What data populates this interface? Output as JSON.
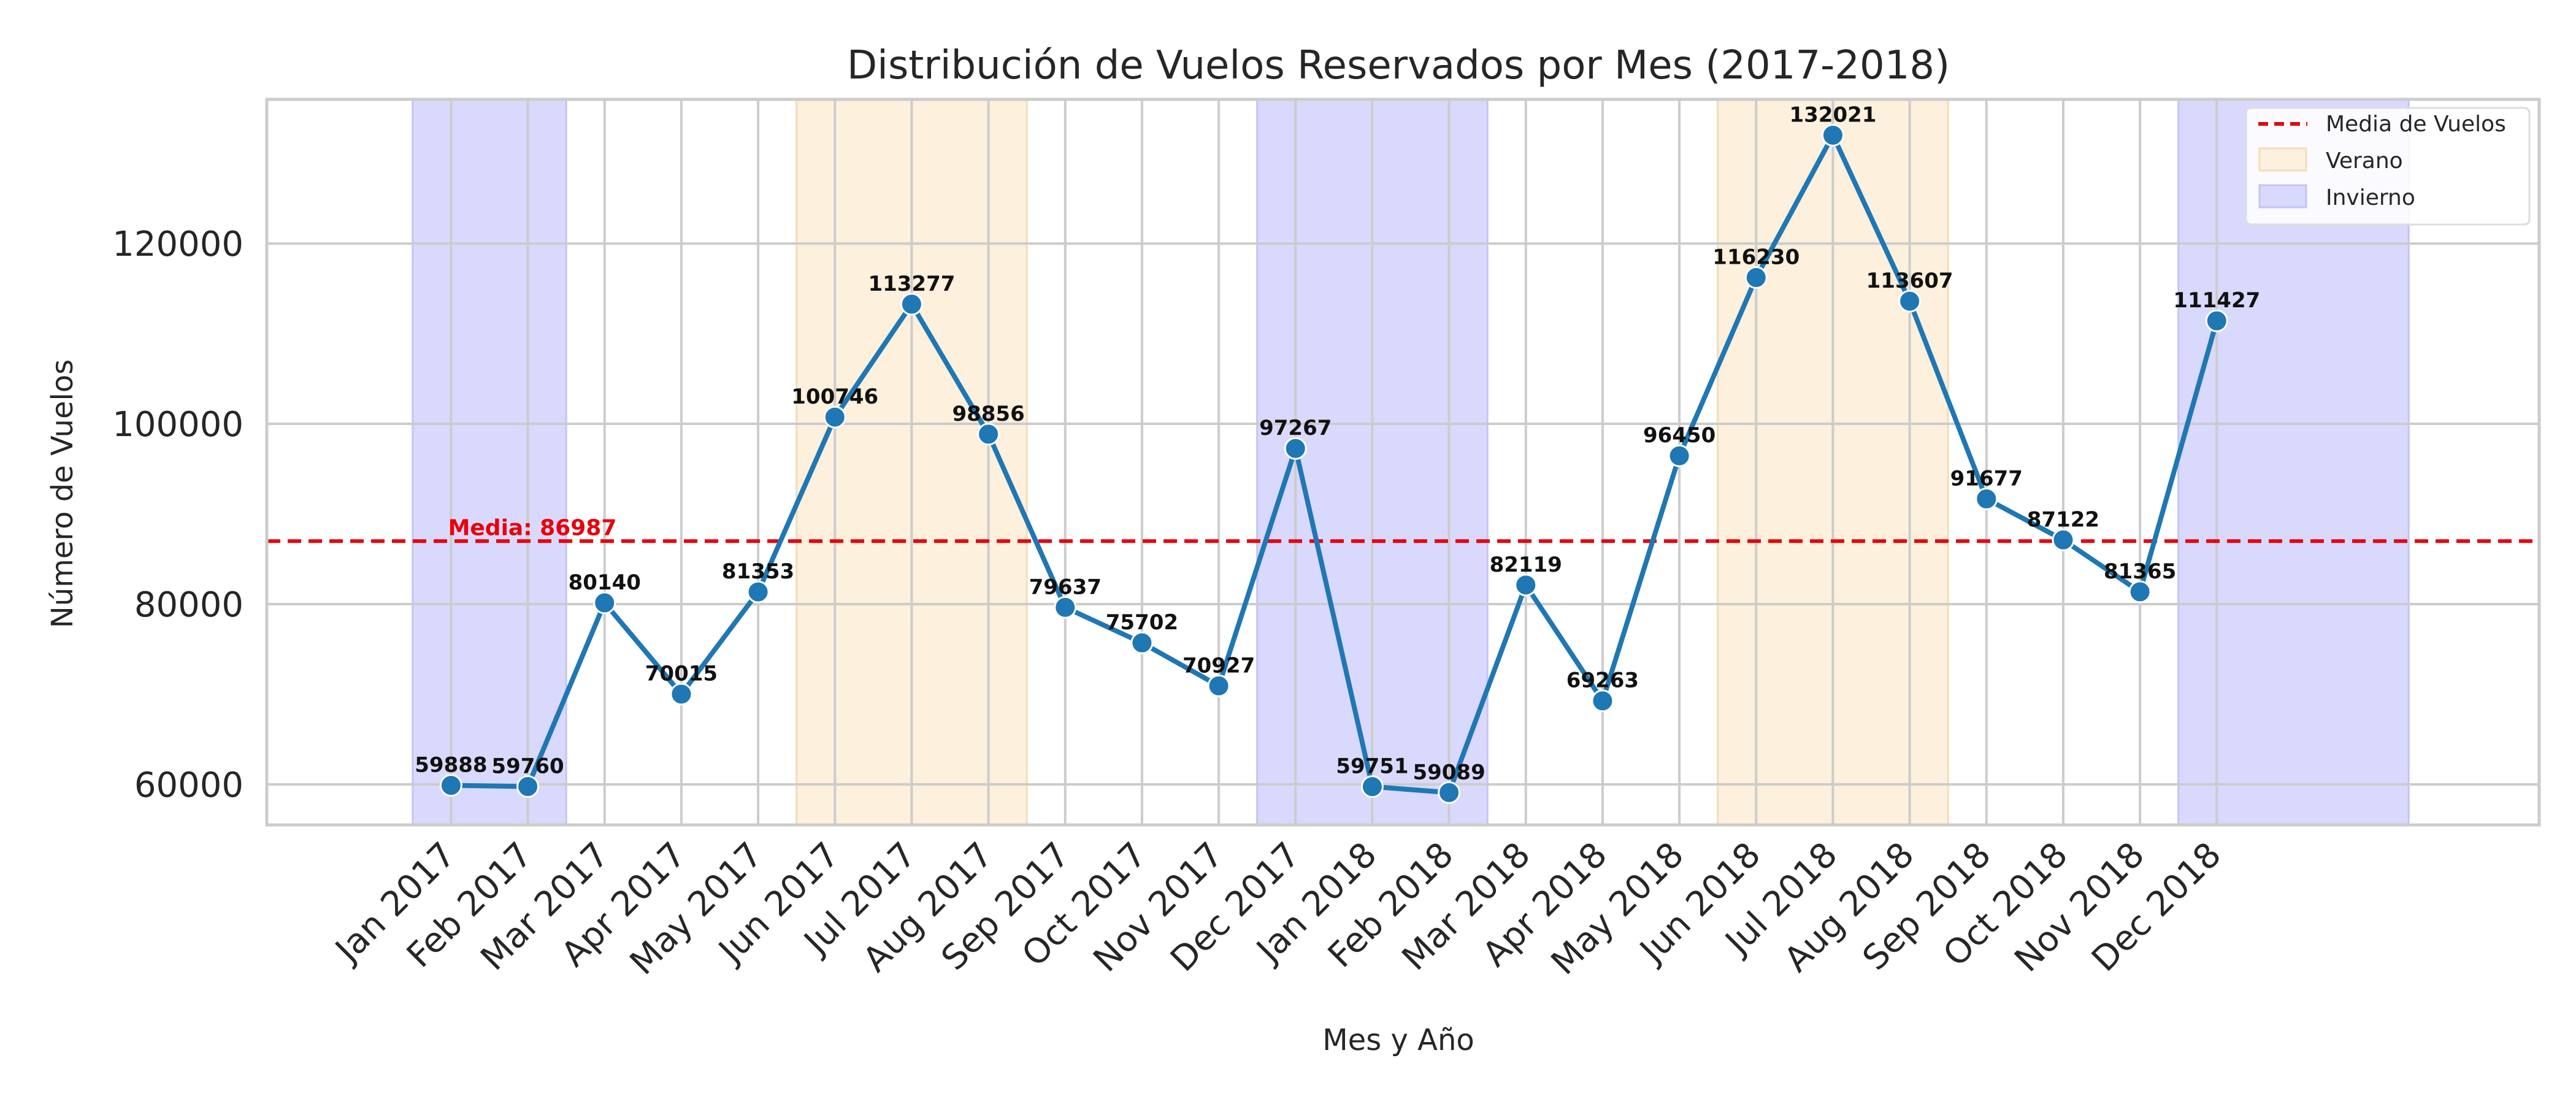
{
  "chart_data": {
    "type": "line",
    "title": "Distribución de Vuelos Reservados por Mes (2017-2018)",
    "xlabel": "Mes y Año",
    "ylabel": "Número de Vuelos",
    "categories": [
      "Jan 2017",
      "Feb 2017",
      "Mar 2017",
      "Apr 2017",
      "May 2017",
      "Jun 2017",
      "Jul 2017",
      "Aug 2017",
      "Sep 2017",
      "Oct 2017",
      "Nov 2017",
      "Dec 2017",
      "Jan 2018",
      "Feb 2018",
      "Mar 2018",
      "Apr 2018",
      "May 2018",
      "Jun 2018",
      "Jul 2018",
      "Aug 2018",
      "Sep 2018",
      "Oct 2018",
      "Nov 2018",
      "Dec 2018"
    ],
    "series": [
      {
        "values": [
          59888,
          59760,
          80140,
          70015,
          81353,
          100746,
          113277,
          98856,
          79637,
          75702,
          70927,
          97267,
          59751,
          59089,
          82119,
          69263,
          96450,
          116230,
          132021,
          113607,
          91677,
          87122,
          81365,
          111427
        ],
        "labels": [
          "59888",
          "59760",
          "80140",
          "70015",
          "81353",
          "100746",
          "113277",
          "98856",
          "79637",
          "75702",
          "70927",
          "97267",
          "59751",
          "59089",
          "82119",
          "69263",
          "96450",
          "116230",
          "132021",
          "113607",
          "91677",
          "87122",
          "81365",
          "111427"
        ],
        "color": "#1f77b4"
      }
    ],
    "mean": {
      "value": 86987,
      "label": "Media: 86987",
      "color": "#e8000b"
    },
    "seasons": [
      {
        "kind": "Invierno",
        "from": -0.5,
        "to": 1.5
      },
      {
        "kind": "Verano",
        "from": 4.5,
        "to": 7.5
      },
      {
        "kind": "Invierno",
        "from": 10.5,
        "to": 13.5
      },
      {
        "kind": "Verano",
        "from": 16.5,
        "to": 19.5
      },
      {
        "kind": "Invierno",
        "from": 22.5,
        "to": 25.5
      }
    ],
    "season_colors": {
      "Verano": "#fdf0dc",
      "Invierno": "#d9d9fd"
    },
    "yticks": [
      "60000",
      "80000",
      "100000",
      "120000"
    ],
    "ylim": [
      55500,
      136000
    ],
    "xlim": [
      -2.4,
      27.2
    ],
    "grid": true,
    "legend": {
      "position": "top-right",
      "entries": [
        "Media de Vuelos",
        "Verano",
        "Invierno"
      ]
    }
  }
}
